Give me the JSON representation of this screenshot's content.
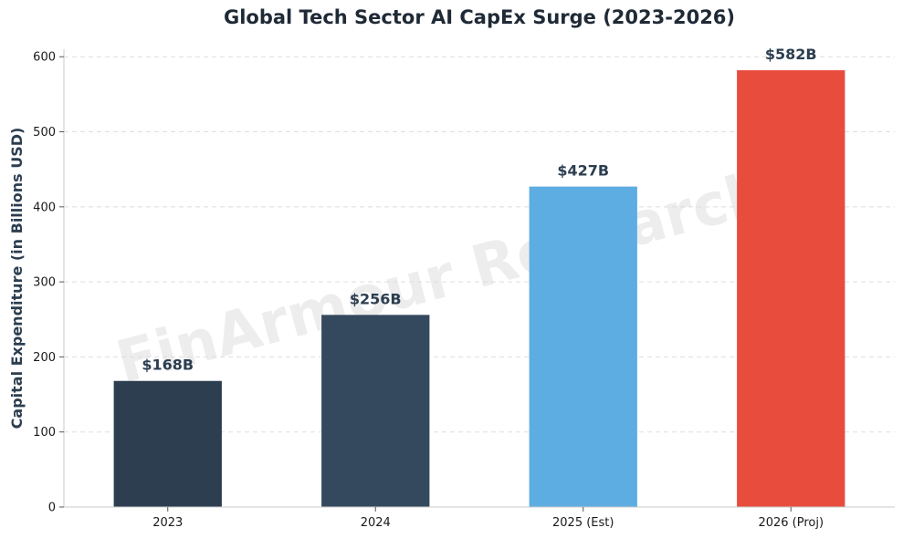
{
  "chart_data": {
    "type": "bar",
    "title": "Global Tech Sector AI CapEx Surge (2023-2026)",
    "xlabel": "",
    "ylabel": "Capital Expenditure (in Billions USD)",
    "categories": [
      "2023",
      "2024",
      "2025 (Est)",
      "2026 (Proj)"
    ],
    "values": [
      168,
      256,
      427,
      582
    ],
    "data_labels": [
      "$168B",
      "$256B",
      "$427B",
      "$582B"
    ],
    "colors": [
      "#2d3e50",
      "#34495e",
      "#5dade2",
      "#e74c3c"
    ],
    "ylim": [
      0,
      610
    ],
    "yticks": [
      0,
      100,
      200,
      300,
      400,
      500,
      600
    ],
    "grid": "horizontal dashed",
    "legend": "none",
    "watermark": "FinArmour Research"
  }
}
